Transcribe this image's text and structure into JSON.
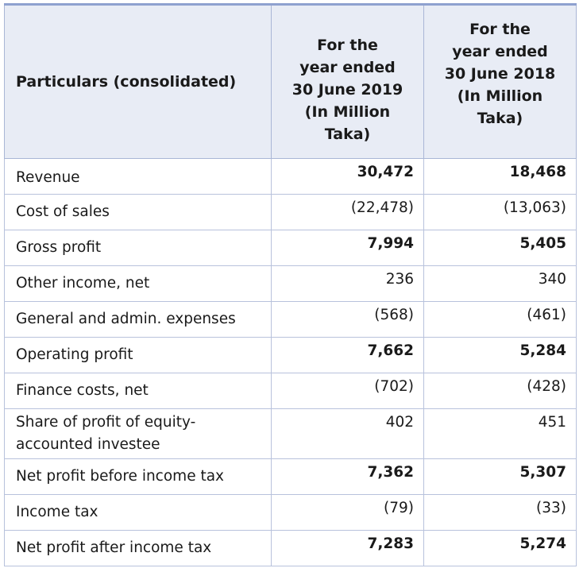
{
  "header": {
    "particulars": "Particulars (consolidated)",
    "col_2019": [
      "For the",
      "year ended",
      "30 June 2019",
      "(In Million",
      "Taka)"
    ],
    "col_2018": [
      "For the",
      "year ended",
      "30 June 2018",
      "(In Million",
      "Taka)"
    ]
  },
  "rows": [
    {
      "label": "Revenue",
      "y2019": "30,472",
      "y2018": "18,468",
      "bold": true
    },
    {
      "label": "Cost of sales",
      "y2019": "(22,478)",
      "y2018": "(13,063)",
      "bold": false
    },
    {
      "label": "Gross profit",
      "y2019": "7,994",
      "y2018": "5,405",
      "bold": true
    },
    {
      "label": "Other income, net",
      "y2019": "236",
      "y2018": "340",
      "bold": false
    },
    {
      "label": "General and admin. expenses",
      "y2019": "(568)",
      "y2018": "(461)",
      "bold": false
    },
    {
      "label": "Operating profit",
      "y2019": "7,662",
      "y2018": "5,284",
      "bold": true
    },
    {
      "label": "Finance costs, net",
      "y2019": "(702)",
      "y2018": "(428)",
      "bold": false
    },
    {
      "label_lines": [
        "Share of profit of equity-",
        "accounted investee"
      ],
      "y2019": "402",
      "y2018": "451",
      "bold": false
    },
    {
      "label": "Net profit before income tax",
      "y2019": "7,362",
      "y2018": "5,307",
      "bold": true
    },
    {
      "label": "Income tax",
      "y2019": "(79)",
      "y2018": "(33)",
      "bold": false
    },
    {
      "label": "Net profit after income tax",
      "y2019": "7,283",
      "y2018": "5,274",
      "bold": true
    }
  ]
}
